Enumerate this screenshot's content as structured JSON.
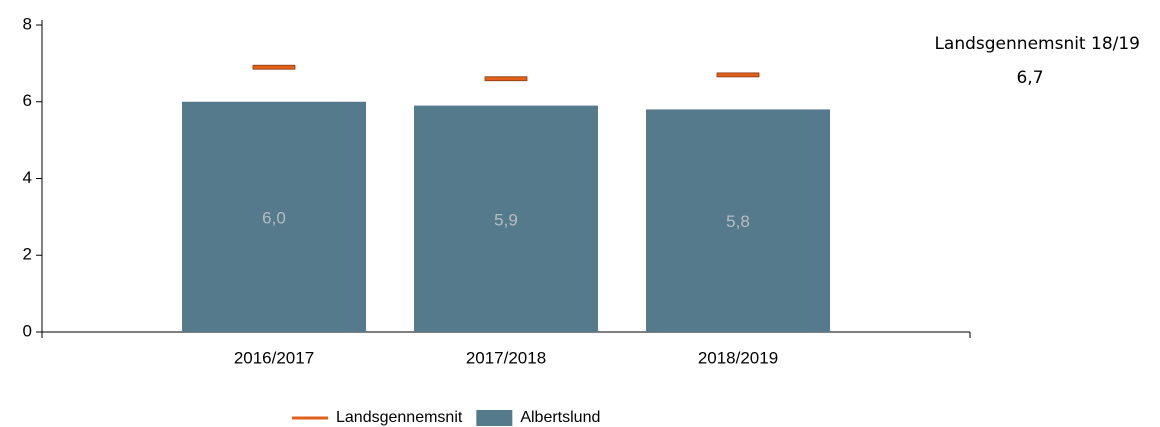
{
  "chart_data": {
    "type": "bar",
    "categories": [
      "2016/2017",
      "2017/2018",
      "2018/2019"
    ],
    "series": [
      {
        "name": "Landsgennemsnit",
        "color": "#e0601c",
        "mark": "dash",
        "values": [
          6.9,
          6.6,
          6.7
        ]
      },
      {
        "name": "Albertslund",
        "color": "#557a8c",
        "mark": "bar",
        "values": [
          6.0,
          5.9,
          5.8
        ],
        "value_labels": [
          "6,0",
          "5,9",
          "5,8"
        ]
      }
    ],
    "ylim": [
      0,
      8
    ],
    "yticks": [
      0,
      2,
      4,
      6,
      8
    ],
    "annotations": [
      "Landsgennemsnit 18/19",
      "6,7"
    ]
  }
}
